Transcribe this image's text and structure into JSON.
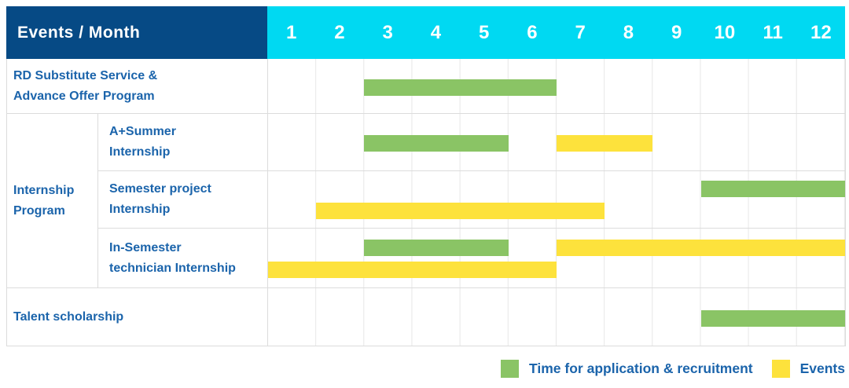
{
  "header": {
    "title": "Events / Month",
    "months": [
      "1",
      "2",
      "3",
      "4",
      "5",
      "6",
      "7",
      "8",
      "9",
      "10",
      "11",
      "12"
    ]
  },
  "colors": {
    "header_bg": "#064a85",
    "month_strip_bg": "#00d9f2",
    "green": "#8ac465",
    "yellow": "#fde23c",
    "label_text": "#1b64ab"
  },
  "legend": [
    {
      "key": "recruitment",
      "label": "Time for application & recruitment",
      "color": "#8ac465"
    },
    {
      "key": "events",
      "label": "Events",
      "color": "#fde23c"
    }
  ],
  "chart_data": {
    "type": "bar",
    "subtype": "gantt",
    "title": "Events / Month",
    "x_categories": [
      1,
      2,
      3,
      4,
      5,
      6,
      7,
      8,
      9,
      10,
      11,
      12
    ],
    "x_range": [
      1,
      12
    ],
    "grid": true,
    "legend_position": "bottom-right",
    "groups": [
      {
        "label": "Internship Program",
        "label_lines": [
          "Internship",
          "Program"
        ],
        "row_indexes": [
          1,
          2,
          3
        ]
      }
    ],
    "rows": [
      {
        "group": null,
        "label": "RD Substitute Service & Advance Offer Program",
        "label_lines": [
          "RD Substitute Service &",
          "Advance Offer Program"
        ],
        "bars": [
          {
            "series": "Time for application & recruitment",
            "start_month": 3,
            "end_month": 6,
            "line": 0
          }
        ]
      },
      {
        "group": "Internship Program",
        "label": "A+Summer Internship",
        "label_lines": [
          "A+Summer",
          "Internship"
        ],
        "bars": [
          {
            "series": "Time for application & recruitment",
            "start_month": 3,
            "end_month": 5,
            "line": 0
          },
          {
            "series": "Events",
            "start_month": 7,
            "end_month": 8,
            "line": 0
          }
        ]
      },
      {
        "group": "Internship Program",
        "label": "Semester project Internship",
        "label_lines": [
          "Semester project",
          "Internship"
        ],
        "bars": [
          {
            "series": "Time for application & recruitment",
            "start_month": 10,
            "end_month": 12,
            "line": 0
          },
          {
            "series": "Events",
            "start_month": 2,
            "end_month": 7,
            "line": 1
          }
        ]
      },
      {
        "group": "Internship Program",
        "label": "In-Semester technician Internship",
        "label_lines": [
          "In-Semester",
          "technician Internship"
        ],
        "bars": [
          {
            "series": "Time for application & recruitment",
            "start_month": 3,
            "end_month": 5,
            "line": 0
          },
          {
            "series": "Events",
            "start_month": 7,
            "end_month": 12,
            "line": 0
          },
          {
            "series": "Events",
            "start_month": 1,
            "end_month": 6,
            "line": 1
          }
        ]
      },
      {
        "group": null,
        "label": "Talent scholarship",
        "label_lines": [
          "Talent scholarship"
        ],
        "bars": [
          {
            "series": "Time for application & recruitment",
            "start_month": 10,
            "end_month": 12,
            "line": 0
          }
        ]
      }
    ]
  }
}
